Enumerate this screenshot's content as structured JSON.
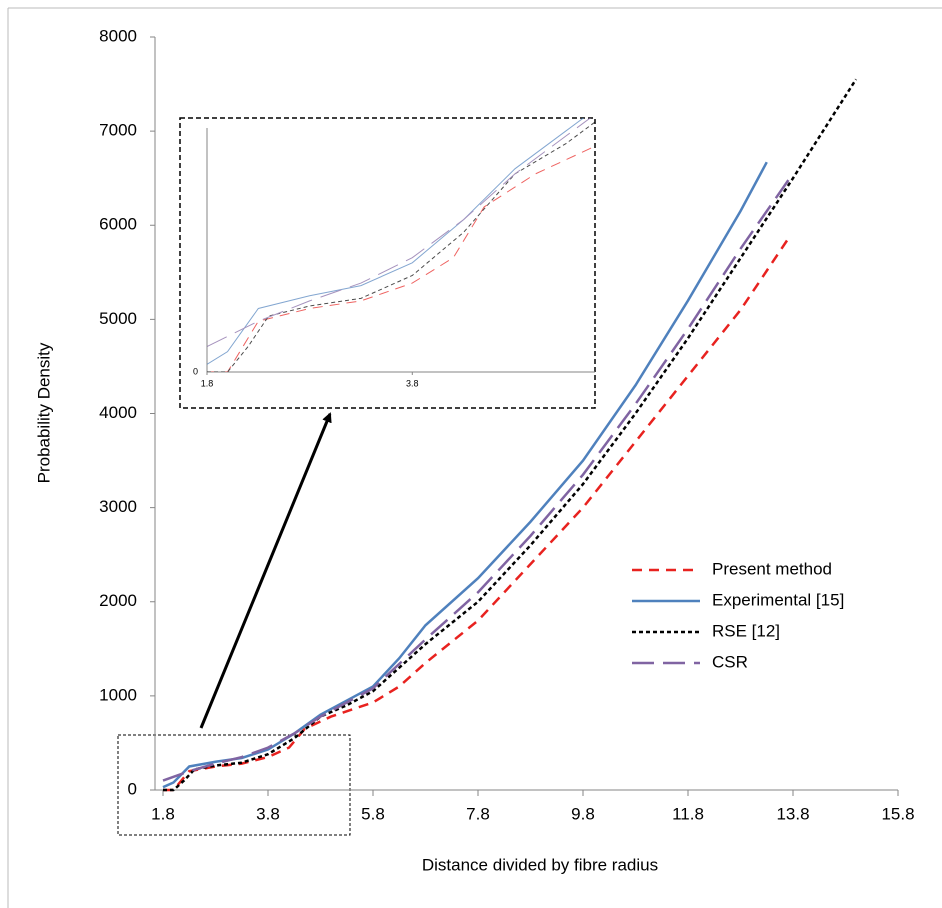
{
  "chart_data": {
    "type": "line",
    "xlabel": "Distance divided by fibre radius",
    "ylabel": "Probability Density",
    "xlim": [
      1.8,
      15.8
    ],
    "xticks": [
      1.8,
      3.8,
      5.8,
      7.8,
      9.8,
      11.8,
      13.8,
      15.8
    ],
    "ylim": [
      0,
      8000
    ],
    "yticks": [
      0,
      1000,
      2000,
      3000,
      4000,
      5000,
      6000,
      7000,
      8000
    ],
    "legend": "right",
    "series": [
      {
        "name": "Present method",
        "color": "#e8221f",
        "dash": "10,7",
        "x": [
          1.8,
          2.0,
          2.3,
          2.8,
          3.3,
          3.8,
          4.2,
          4.5,
          5.0,
          5.8,
          6.3,
          6.8,
          7.8,
          8.8,
          9.8,
          10.8,
          11.8,
          12.8,
          13.7
        ],
        "values": [
          0,
          0,
          200,
          250,
          280,
          350,
          450,
          650,
          780,
          930,
          1100,
          1350,
          1800,
          2400,
          3000,
          3700,
          4400,
          5100,
          5850
        ]
      },
      {
        "name": "Experimental [15]",
        "color": "#4f81bd",
        "dash": "none",
        "x": [
          1.8,
          2.0,
          2.3,
          2.8,
          3.3,
          3.8,
          4.3,
          4.8,
          5.3,
          5.8,
          6.3,
          6.8,
          7.8,
          8.8,
          9.8,
          10.8,
          11.8,
          12.8,
          13.3
        ],
        "values": [
          30,
          80,
          250,
          300,
          340,
          430,
          600,
          800,
          950,
          1100,
          1400,
          1750,
          2250,
          2850,
          3500,
          4300,
          5200,
          6150,
          6670
        ]
      },
      {
        "name": "RSE [12]",
        "color": "#000000",
        "dash": "4,3",
        "x": [
          1.8,
          2.0,
          2.2,
          2.4,
          2.8,
          3.3,
          3.8,
          4.3,
          4.8,
          5.3,
          5.8,
          6.3,
          6.8,
          7.8,
          8.8,
          9.8,
          10.8,
          11.8,
          12.8,
          13.8,
          15.0
        ],
        "values": [
          0,
          0,
          100,
          220,
          260,
          290,
          380,
          550,
          780,
          900,
          1050,
          1300,
          1550,
          2000,
          2600,
          3250,
          4000,
          4800,
          5650,
          6500,
          7550
        ]
      },
      {
        "name": "CSR",
        "color": "#8064a2",
        "dash": "22,9",
        "x": [
          1.8,
          2.3,
          2.8,
          3.3,
          3.8,
          4.3,
          4.8,
          5.3,
          5.8,
          6.8,
          7.8,
          8.8,
          9.8,
          10.8,
          11.8,
          12.8,
          13.8
        ],
        "values": [
          100,
          200,
          280,
          350,
          450,
          600,
          780,
          930,
          1080,
          1600,
          2100,
          2700,
          3350,
          4100,
          4900,
          5750,
          6550
        ]
      }
    ],
    "inset": {
      "xlim": [
        1.8,
        5.58
      ],
      "xticks": [
        1.8,
        3.8
      ],
      "ylim": [
        0,
        1000
      ],
      "yticks": [
        0
      ]
    }
  }
}
